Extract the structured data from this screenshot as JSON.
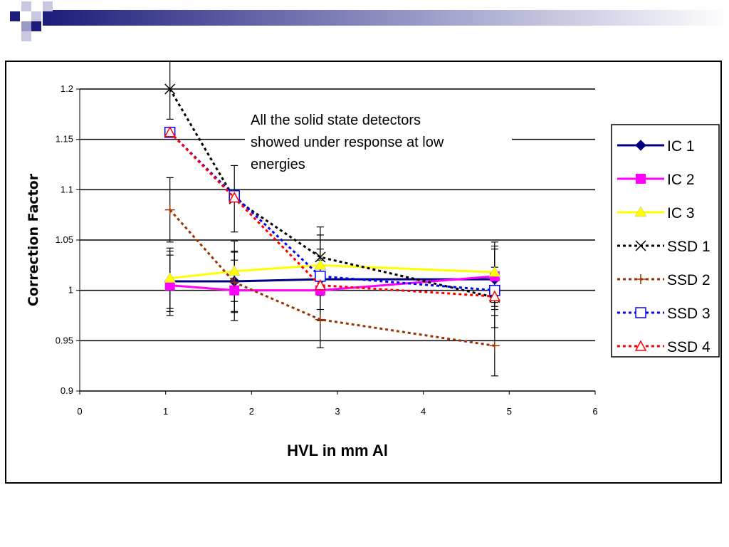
{
  "chart_data": {
    "type": "line",
    "xlabel": "HVL in mm Al",
    "ylabel": "Correction Factor",
    "xlim": [
      0,
      6
    ],
    "ylim": [
      0.9,
      1.2
    ],
    "xticks": [
      "0",
      "1",
      "2",
      "3",
      "4",
      "5",
      "6"
    ],
    "yticks": [
      "0.9",
      "0.95",
      "1",
      "1.05",
      "1.1",
      "1.15",
      "1.2"
    ],
    "grid": "horizontal",
    "legend_position": "right",
    "annotation": [
      "All the solid state detectors",
      "showed under response at low",
      "energies"
    ],
    "series": [
      {
        "name": "IC 1",
        "color": "#000080",
        "style": "solid",
        "marker": "diamond",
        "x": [
          1.05,
          1.8,
          2.8,
          4.83
        ],
        "y": [
          1.009,
          1.009,
          1.011,
          1.011
        ],
        "err": [
          0.03,
          0.03,
          0.03,
          0.03
        ]
      },
      {
        "name": "IC 2",
        "color": "#ff00ff",
        "style": "solid",
        "marker": "square",
        "x": [
          1.05,
          1.8,
          2.8,
          4.83
        ],
        "y": [
          1.005,
          1.0,
          1.0,
          1.014
        ],
        "err": [
          0.03,
          0.03,
          0.03,
          0.03
        ]
      },
      {
        "name": "IC 3",
        "color": "#ffff00",
        "style": "solid",
        "marker": "triangle",
        "x": [
          1.05,
          1.8,
          2.8,
          4.83
        ],
        "y": [
          1.012,
          1.019,
          1.025,
          1.018
        ],
        "err": [
          0.03,
          0.03,
          0.03,
          0.03
        ]
      },
      {
        "name": "SSD 1",
        "color": "#000000",
        "style": "dotted",
        "marker": "x",
        "x": [
          1.05,
          1.8,
          2.8,
          4.83
        ],
        "y": [
          1.2,
          1.091,
          1.033,
          0.993
        ],
        "err": [
          0.03,
          0.033,
          0.03,
          0.03
        ]
      },
      {
        "name": "SSD 2",
        "color": "#993300",
        "style": "dotted",
        "marker": "plus",
        "x": [
          1.05,
          1.8,
          2.8,
          4.83
        ],
        "y": [
          1.08,
          1.008,
          0.971,
          0.945
        ],
        "err": [
          0.032,
          0.03,
          0.028,
          0.03
        ]
      },
      {
        "name": "SSD 3",
        "color": "#0000ff",
        "style": "dotted",
        "marker": "square-open",
        "x": [
          1.05,
          1.8,
          2.8,
          4.83
        ],
        "y": [
          1.157,
          1.094,
          1.014,
          1.0
        ],
        "err": [
          0,
          0,
          0,
          0
        ]
      },
      {
        "name": "SSD 4",
        "color": "#ff0000",
        "style": "dotted",
        "marker": "triangle-open",
        "x": [
          1.05,
          1.8,
          2.8,
          4.83
        ],
        "y": [
          1.157,
          1.092,
          1.005,
          0.994
        ],
        "err": [
          0,
          0,
          0,
          0
        ]
      }
    ]
  }
}
